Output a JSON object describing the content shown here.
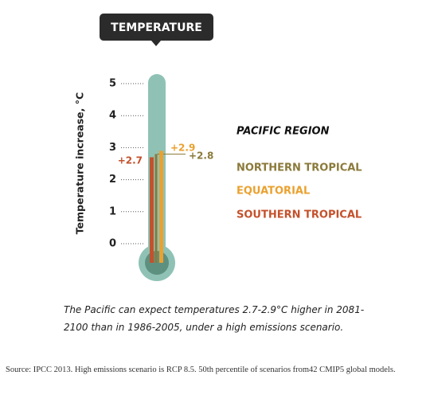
{
  "chart_data": {
    "type": "bar",
    "title": "TEMPERATURE",
    "ylabel": "Temperature increase, °C",
    "legend_title": "PACIFIC REGION",
    "series": [
      {
        "name": "NORTHERN TROPICAL",
        "color": "#8b7a3a",
        "values": [
          2.8
        ],
        "value_labels": [
          "+2.8"
        ]
      },
      {
        "name": "EQUATORIAL",
        "color": "#eaa12f",
        "values": [
          2.9
        ],
        "value_labels": [
          "+2.9"
        ]
      },
      {
        "name": "SOUTHERN TROPICAL",
        "color": "#c4512b",
        "values": [
          2.7
        ],
        "value_labels": [
          "+2.7"
        ]
      }
    ],
    "ylim": [
      0,
      5
    ],
    "yticks": [
      0,
      1,
      2,
      3,
      4,
      5
    ],
    "caption": "The Pacific can expect temperatures 2.7-2.9°C higher in 2081-2100 than in 1986-2005, under a high emissions scenario.",
    "source": "Source: IPCC 2013. High emissions scenario is RCP 8.5. 50th percentile of scenarios from42 CMIP5 global models."
  }
}
